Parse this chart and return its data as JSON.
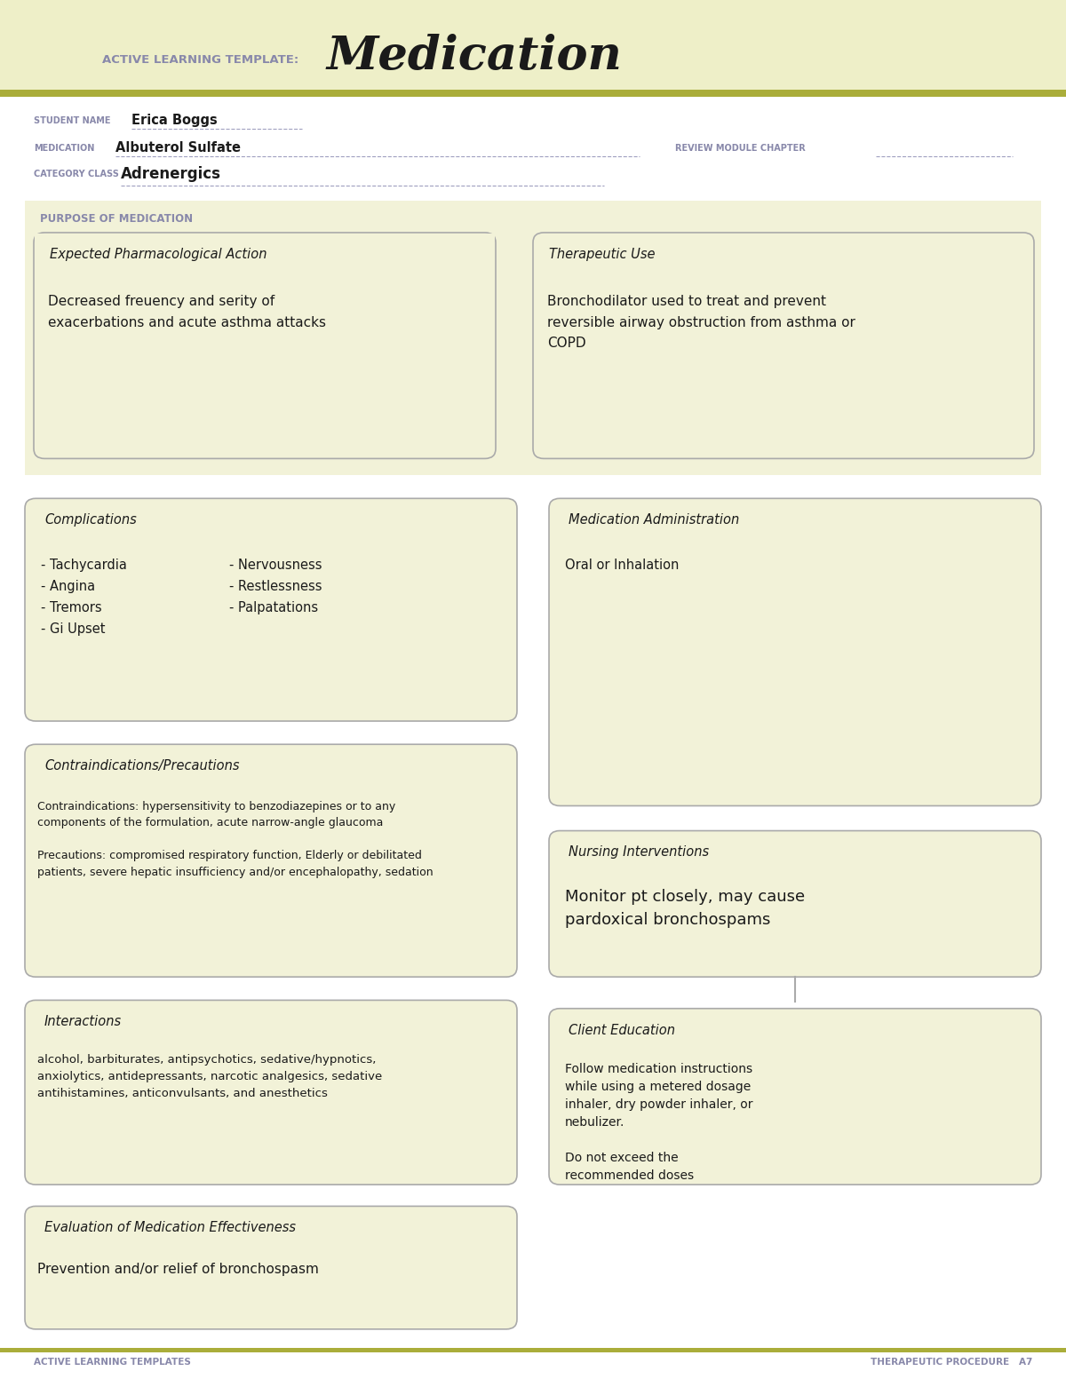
{
  "bg_color": "#FFFFFF",
  "header_bg": "#EEEFC8",
  "olive_line": "#AAAD3A",
  "white": "#FFFFFF",
  "box_border": "#AAAAAA",
  "section_fill": "#F2F2D8",
  "purple_label": "#8888AA",
  "dark_text": "#1A1A1A",
  "title_label": "ACTIVE LEARNING TEMPLATE:",
  "title_main": "Medication",
  "student_label": "STUDENT NAME",
  "student_name": "Erica Boggs",
  "medication_label": "MEDICATION",
  "medication_name": "Albuterol Sulfate",
  "review_label": "REVIEW MODULE CHAPTER",
  "category_label": "CATEGORY CLASS",
  "category_name": "Adrenergics",
  "purpose_label": "PURPOSE OF MEDICATION",
  "epa_title": "Expected Pharmacological Action",
  "epa_text": "Decreased freuency and serity of\nexacerbations and acute asthma attacks",
  "tu_title": "Therapeutic Use",
  "tu_text": "Bronchodilator used to treat and prevent\nreversible airway obstruction from asthma or\nCOPD",
  "comp_title": "Complications",
  "comp_text_left": "- Tachycardia\n- Angina\n- Tremors\n- Gi Upset",
  "comp_text_right": "- Nervousness\n- Restlessness\n- Palpatations",
  "med_admin_title": "Medication Administration",
  "med_admin_text": "Oral or Inhalation",
  "contra_title": "Contraindications/Precautions",
  "contra_text": "Contraindications: hypersensitivity to benzodiazepines or to any\ncomponents of the formulation, acute narrow-angle glaucoma\n\nPrecautions: compromised respiratory function, Elderly or debilitated\npatients, severe hepatic insufficiency and/or encephalopathy, sedation",
  "nursing_title": "Nursing Interventions",
  "nursing_text": "Monitor pt closely, may cause\npardoxical bronchospams",
  "interact_title": "Interactions",
  "interact_text": "alcohol, barbiturates, antipsychotics, sedative/hypnotics,\nanxiolytics, antidepressants, narcotic analgesics, sedative\nantihistamines, anticonvulsants, and anesthetics",
  "client_title": "Client Education",
  "client_text": "Follow medication instructions\nwhile using a metered dosage\ninhaler, dry powder inhaler, or\nnebulizer.\n\nDo not exceed the\nrecommended doses",
  "eval_title": "Evaluation of Medication Effectiveness",
  "eval_text": "Prevention and/or relief of bronchospasm",
  "footer_left": "ACTIVE LEARNING TEMPLATES",
  "footer_right": "THERAPEUTIC PROCEDURE   A7"
}
